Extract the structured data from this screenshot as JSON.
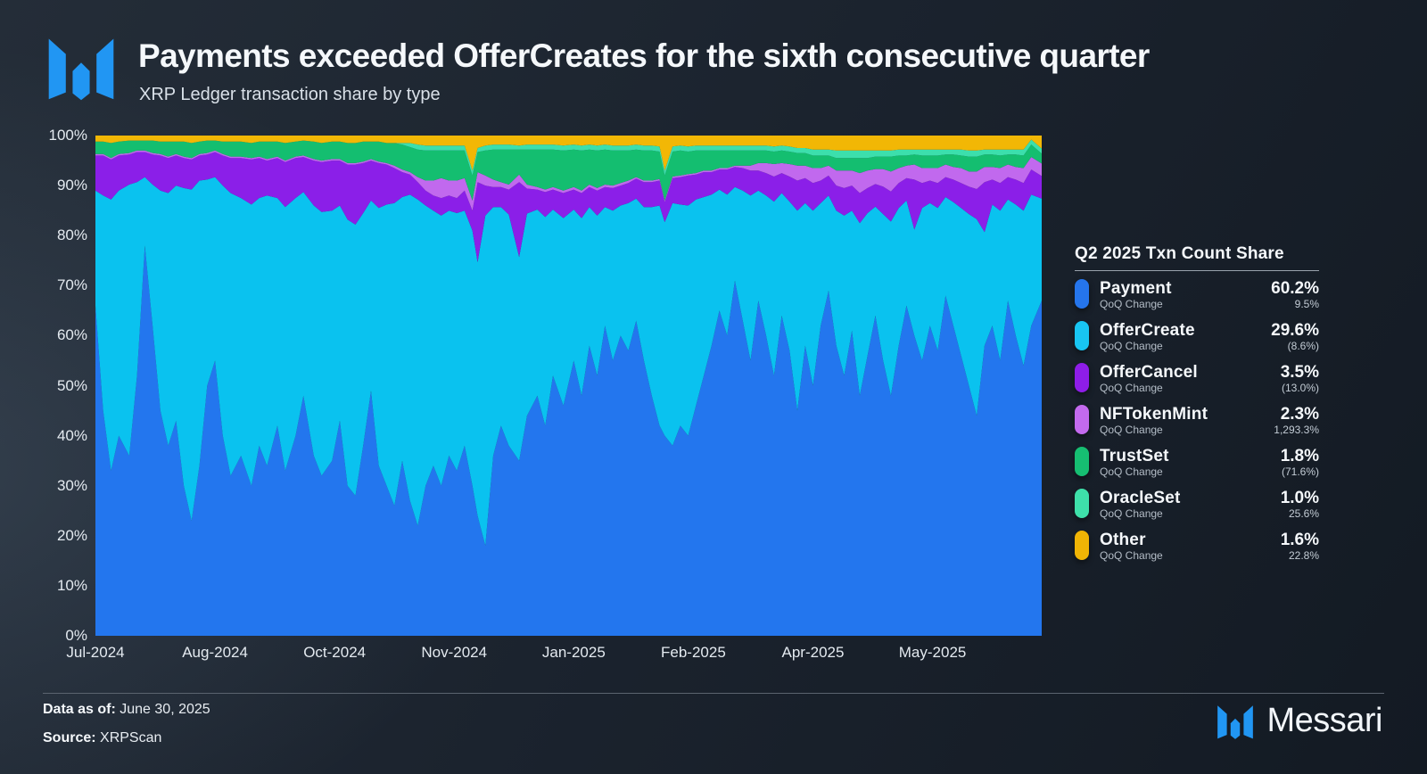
{
  "header": {
    "title": "Payments exceeded OfferCreates for the sixth consecutive quarter",
    "subtitle": "XRP Ledger transaction share by type",
    "logo_color": "#2196F3"
  },
  "legend": {
    "title": "Q2 2025 Txn Count Share",
    "sub_label": "QoQ Change",
    "items": [
      {
        "name": "Payment",
        "value": "60.2%",
        "change": "9.5%",
        "color": "#2575EC"
      },
      {
        "name": "OfferCreate",
        "value": "29.6%",
        "change": "(8.6%)",
        "color": "#18C5F2"
      },
      {
        "name": "OfferCancel",
        "value": "3.5%",
        "change": "(13.0%)",
        "color": "#8E1DE8"
      },
      {
        "name": "NFTokenMint",
        "value": "2.3%",
        "change": "1,293.3%",
        "color": "#C36AEE"
      },
      {
        "name": "TrustSet",
        "value": "1.8%",
        "change": "(71.6%)",
        "color": "#16BE72"
      },
      {
        "name": "OracleSet",
        "value": "1.0%",
        "change": "25.6%",
        "color": "#3EE0AA"
      },
      {
        "name": "Other",
        "value": "1.6%",
        "change": "22.8%",
        "color": "#F0B405"
      }
    ]
  },
  "footer": {
    "data_as_of_label": "Data as of:",
    "data_as_of_value": "June 30, 2025",
    "source_label": "Source:",
    "source_value": "XRPScan",
    "wordmark": "Messari"
  },
  "chart_data": {
    "type": "area",
    "stacking": "percent",
    "title": "XRP Ledger transaction share by type",
    "grid": false,
    "legend_position": "right",
    "x_axis": {
      "unit": "days since 2024-07-01",
      "range_days": [
        0,
        364
      ],
      "tick_labels": [
        "Jul-2024",
        "Aug-2024",
        "Oct-2024",
        "Nov-2024",
        "Jan-2025",
        "Feb-2025",
        "Apr-2025",
        "May-2025"
      ],
      "tick_day_offsets": [
        0,
        46,
        92,
        138,
        184,
        230,
        276,
        322
      ]
    },
    "y_axis": {
      "min": 0,
      "max": 100,
      "tick_labels": [
        "0%",
        "10%",
        "20%",
        "30%",
        "40%",
        "50%",
        "60%",
        "70%",
        "80%",
        "90%",
        "100%"
      ]
    },
    "series_meta": [
      {
        "name": "Payment",
        "color": "#2376EE"
      },
      {
        "name": "OfferCreate",
        "color": "#0AC2EF"
      },
      {
        "name": "OfferCancel",
        "color": "#8B1FE8"
      },
      {
        "name": "NFTokenMint",
        "color": "#C169EE"
      },
      {
        "name": "TrustSet",
        "color": "#14BE70"
      },
      {
        "name": "OracleSet",
        "color": "#3CDFAC"
      },
      {
        "name": "Other",
        "color": "#F2B705"
      }
    ],
    "columns": [
      "day",
      "Payment",
      "OfferCreate",
      "OfferCancel",
      "NFTokenMint",
      "TrustSet",
      "OracleSet",
      "Other"
    ],
    "points": [
      [
        0,
        66,
        23,
        7,
        0.3,
        2.5,
        0,
        1.2
      ],
      [
        3,
        45,
        43,
        8,
        0.3,
        2.5,
        0,
        1.2
      ],
      [
        6,
        33,
        54.2,
        8,
        0.3,
        3,
        0,
        1.5
      ],
      [
        9,
        40,
        49,
        7,
        0.3,
        2.5,
        0,
        1.2
      ],
      [
        13,
        36,
        54.2,
        6,
        0.3,
        2.5,
        0,
        1
      ],
      [
        16,
        52,
        38.7,
        6,
        0.3,
        2,
        0,
        1
      ],
      [
        19,
        78,
        13.7,
        5,
        0.3,
        2,
        0,
        1
      ],
      [
        22,
        62,
        28.2,
        6,
        0.3,
        2.5,
        0,
        1
      ],
      [
        25,
        45,
        44,
        7,
        0.3,
        2.5,
        0,
        1.2
      ],
      [
        28,
        38,
        50.5,
        7,
        0.3,
        3,
        0,
        1.2
      ],
      [
        31,
        43,
        47,
        6,
        0.3,
        2.5,
        0,
        1.2
      ],
      [
        34,
        30,
        59.5,
        6,
        0.3,
        3,
        0,
        1.2
      ],
      [
        37,
        23,
        66.2,
        6,
        0.3,
        3,
        0,
        1.5
      ],
      [
        40,
        34,
        57,
        5,
        0.3,
        2.5,
        0,
        1.2
      ],
      [
        43,
        50,
        41.2,
        5,
        0.3,
        2.5,
        0,
        1
      ],
      [
        46,
        55,
        36.7,
        5,
        0.3,
        2,
        0,
        1
      ],
      [
        49,
        40,
        50,
        6,
        0.3,
        2.5,
        0,
        1.2
      ],
      [
        52,
        32,
        56.5,
        7,
        0.3,
        3,
        0,
        1.2
      ],
      [
        56,
        36,
        51.5,
        8,
        0.3,
        3,
        0,
        1.2
      ],
      [
        60,
        30,
        56.2,
        9,
        0.3,
        3,
        0,
        1.5
      ],
      [
        63,
        38,
        49.5,
        8,
        0.3,
        3,
        0,
        1.2
      ],
      [
        66,
        34,
        54,
        7,
        0.3,
        3.5,
        0,
        1.2
      ],
      [
        70,
        42,
        45.5,
        8,
        0.3,
        3,
        0,
        1.2
      ],
      [
        73,
        33,
        52.7,
        9,
        0.3,
        3.5,
        0,
        1.5
      ],
      [
        77,
        40,
        47.5,
        8,
        0.3,
        3,
        0,
        1.2
      ],
      [
        80,
        48,
        40.7,
        7,
        0.3,
        3,
        0,
        1
      ],
      [
        84,
        36,
        50,
        9,
        0.3,
        3.5,
        0,
        1.2
      ],
      [
        87,
        32,
        52.7,
        10,
        0.3,
        3.5,
        0,
        1.5
      ],
      [
        91,
        35,
        50,
        10,
        0.3,
        3.5,
        0,
        1.2
      ],
      [
        94,
        43,
        43,
        9,
        0.3,
        3.5,
        0,
        1.2
      ],
      [
        97,
        30,
        53.2,
        11,
        0.3,
        4,
        0,
        1.5
      ],
      [
        100,
        28,
        54.2,
        12,
        0.3,
        4,
        0,
        1.5
      ],
      [
        103,
        38,
        46.5,
        10,
        0.3,
        4,
        0,
        1.2
      ],
      [
        106,
        49,
        38,
        8,
        0.3,
        3.5,
        0,
        1.2
      ],
      [
        109,
        34,
        51.5,
        9,
        0.3,
        4,
        0,
        1.2
      ],
      [
        112,
        30,
        56.2,
        8,
        0.3,
        4,
        0,
        1.5
      ],
      [
        115,
        26,
        60.5,
        7,
        0.5,
        4.5,
        0,
        1.5
      ],
      [
        118,
        35,
        52.7,
        5,
        0.5,
        5,
        0.3,
        1.5
      ],
      [
        121,
        27,
        61.2,
        4,
        0.5,
        5,
        0.8,
        1.5
      ],
      [
        124,
        22,
        65.2,
        3.5,
        1,
        5.5,
        1,
        1.8
      ],
      [
        127,
        30,
        56,
        3,
        2,
        6,
        1,
        2
      ],
      [
        130,
        34,
        51,
        3,
        3,
        6,
        1,
        2
      ],
      [
        133,
        30,
        54,
        3.5,
        4,
        5.5,
        1,
        2
      ],
      [
        136,
        36,
        49,
        3,
        3,
        6,
        1,
        2
      ],
      [
        139,
        33,
        51.5,
        3,
        3.5,
        6,
        1,
        2
      ],
      [
        142,
        38,
        47,
        4,
        2.5,
        5.5,
        1,
        2
      ],
      [
        145,
        30,
        51,
        4,
        2,
        5,
        1,
        7
      ],
      [
        147,
        24,
        50.7,
        16,
        2,
        4,
        0.8,
        2.5
      ],
      [
        150,
        18,
        66,
        6,
        2,
        5,
        1,
        2
      ],
      [
        153,
        36,
        49.7,
        4,
        1.5,
        6,
        1,
        1.8
      ],
      [
        156,
        42,
        43.7,
        4,
        1,
        6.5,
        1,
        1.8
      ],
      [
        159,
        38,
        46.2,
        5,
        1,
        7,
        1,
        1.8
      ],
      [
        163,
        35,
        40.7,
        15,
        1.5,
        5,
        0.8,
        2
      ],
      [
        166,
        44,
        40.4,
        5,
        0.8,
        7,
        1,
        1.8
      ],
      [
        170,
        48,
        37.2,
        4,
        0.5,
        7.5,
        1,
        1.8
      ],
      [
        173,
        42,
        41.7,
        5,
        0.5,
        8,
        1,
        1.8
      ],
      [
        176,
        52,
        33.2,
        4,
        0.5,
        7.5,
        1,
        1.8
      ],
      [
        180,
        46,
        37.5,
        5,
        0.5,
        8,
        1,
        2
      ],
      [
        184,
        55,
        30.2,
        4,
        0.5,
        7.5,
        1,
        1.8
      ],
      [
        187,
        48,
        35.5,
        5,
        0.5,
        8,
        1,
        2
      ],
      [
        190,
        58,
        27.7,
        4,
        0.5,
        7,
        1,
        1.8
      ],
      [
        193,
        52,
        32,
        5,
        0.5,
        7.5,
        1,
        2
      ],
      [
        196,
        62,
        23.7,
        4,
        0.5,
        7,
        1,
        1.8
      ],
      [
        199,
        55,
        30,
        4.5,
        0.5,
        7,
        1,
        2
      ],
      [
        202,
        60,
        26,
        4,
        0.5,
        6.5,
        1,
        2
      ],
      [
        205,
        57,
        29.5,
        4,
        0.5,
        6,
        1,
        2
      ],
      [
        208,
        63,
        24.4,
        4,
        0.3,
        5.5,
        1,
        1.8
      ],
      [
        211,
        55,
        30.7,
        5,
        0.3,
        6,
        1,
        2
      ],
      [
        214,
        48,
        37.7,
        5,
        0.3,
        6,
        1,
        2
      ],
      [
        217,
        42,
        44,
        5,
        0.3,
        5.5,
        1,
        2.2
      ],
      [
        219,
        40,
        42.7,
        4,
        0.3,
        5,
        1,
        7
      ],
      [
        222,
        38,
        48.5,
        5,
        0.3,
        5,
        1,
        2.2
      ],
      [
        225,
        42,
        44.2,
        5.5,
        0.3,
        5,
        1,
        2
      ],
      [
        228,
        40,
        46,
        6,
        0.3,
        4.5,
        1,
        2.2
      ],
      [
        231,
        46,
        41.2,
        5,
        0.3,
        4.5,
        1,
        2
      ],
      [
        234,
        52,
        35.7,
        5,
        0.3,
        4,
        1,
        2
      ],
      [
        237,
        58,
        30.2,
        4.5,
        0.3,
        4,
        1,
        2
      ],
      [
        240,
        65,
        24.2,
        4,
        0.3,
        3.5,
        1,
        2
      ],
      [
        243,
        60,
        28.2,
        5,
        0.3,
        3.5,
        1,
        2
      ],
      [
        246,
        71,
        18.7,
        4,
        0.3,
        3,
        1,
        2
      ],
      [
        249,
        63,
        26,
        4.5,
        0.5,
        3,
        1,
        2
      ],
      [
        252,
        55,
        33,
        5,
        1,
        3,
        1,
        2
      ],
      [
        255,
        67,
        22,
        4,
        1.5,
        2.5,
        1,
        2
      ],
      [
        258,
        60,
        28,
        4.5,
        2,
        2.5,
        1,
        2
      ],
      [
        261,
        52,
        34.8,
        5,
        2.5,
        2.5,
        1,
        2.2
      ],
      [
        264,
        64,
        24.5,
        4,
        2,
        2.5,
        1,
        2
      ],
      [
        267,
        57,
        29.8,
        5,
        2.5,
        2.5,
        1,
        2.2
      ],
      [
        270,
        45,
        40,
        6,
        3,
        2.5,
        1,
        2.5
      ],
      [
        273,
        58,
        28.5,
        5,
        2.5,
        2.5,
        1,
        2.5
      ],
      [
        276,
        50,
        35,
        5.5,
        3,
        2.5,
        1.2,
        2.8
      ],
      [
        279,
        62,
        24.5,
        4.5,
        2.5,
        2.5,
        1.2,
        2.8
      ],
      [
        282,
        69,
        19,
        4,
        2,
        2,
        1.2,
        2.8
      ],
      [
        285,
        58,
        27,
        5,
        3,
        2.5,
        1.5,
        3
      ],
      [
        288,
        52,
        32,
        5.5,
        3.5,
        2.5,
        1.5,
        3
      ],
      [
        291,
        61,
        24,
        5,
        3,
        2.5,
        1.5,
        3
      ],
      [
        294,
        48,
        34.5,
        6,
        4,
        3,
        1.5,
        3
      ],
      [
        297,
        56,
        28.5,
        5,
        3.5,
        2.5,
        1.5,
        3
      ],
      [
        300,
        64,
        21.8,
        4.5,
        3,
        2.5,
        1.2,
        3
      ],
      [
        303,
        55,
        29.3,
        5.5,
        3.5,
        2.5,
        1.2,
        3
      ],
      [
        306,
        48,
        34.8,
        6,
        4,
        3,
        1.2,
        3
      ],
      [
        309,
        58,
        27.5,
        5,
        3,
        2.5,
        1.2,
        2.8
      ],
      [
        312,
        66,
        21,
        4.5,
        2.5,
        2,
        1.2,
        2.8
      ],
      [
        315,
        60,
        21.2,
        10,
        3,
        2,
        1,
        2.8
      ],
      [
        318,
        55,
        30.5,
        5,
        3,
        2.5,
        1.2,
        2.8
      ],
      [
        321,
        62,
        24.5,
        4.5,
        2.5,
        2.5,
        1.2,
        2.8
      ],
      [
        324,
        57,
        28.5,
        5,
        3,
        2.5,
        1.2,
        2.8
      ],
      [
        327,
        68,
        19.7,
        4,
        2.5,
        2,
        1,
        2.8
      ],
      [
        330,
        62,
        24.7,
        4.5,
        2.5,
        2.5,
        1,
        2.8
      ],
      [
        333,
        56,
        29.5,
        5,
        3,
        2.5,
        1.2,
        2.8
      ],
      [
        336,
        50,
        34.3,
        5.5,
        3,
        3,
        1.2,
        3
      ],
      [
        339,
        44,
        39.3,
        6,
        3.5,
        3,
        1.2,
        3
      ],
      [
        342,
        58,
        22.7,
        10,
        3,
        2.5,
        1,
        2.8
      ],
      [
        345,
        62,
        24.2,
        5,
        2.5,
        2.5,
        1,
        2.8
      ],
      [
        348,
        55,
        30,
        5.5,
        3,
        2.5,
        1.2,
        2.8
      ],
      [
        351,
        67,
        20.2,
        4.5,
        2.5,
        2,
        1,
        2.8
      ],
      [
        354,
        60,
        26.2,
        5,
        2.5,
        2.5,
        1,
        2.8
      ],
      [
        357,
        54,
        31,
        5.5,
        3,
        2.5,
        1.2,
        2.8
      ],
      [
        360,
        62,
        26.2,
        5,
        2.5,
        2.5,
        1,
        2.8
      ],
      [
        364,
        67,
        20.4,
        4.5,
        2.5,
        2,
        1,
        2.6
      ]
    ]
  }
}
